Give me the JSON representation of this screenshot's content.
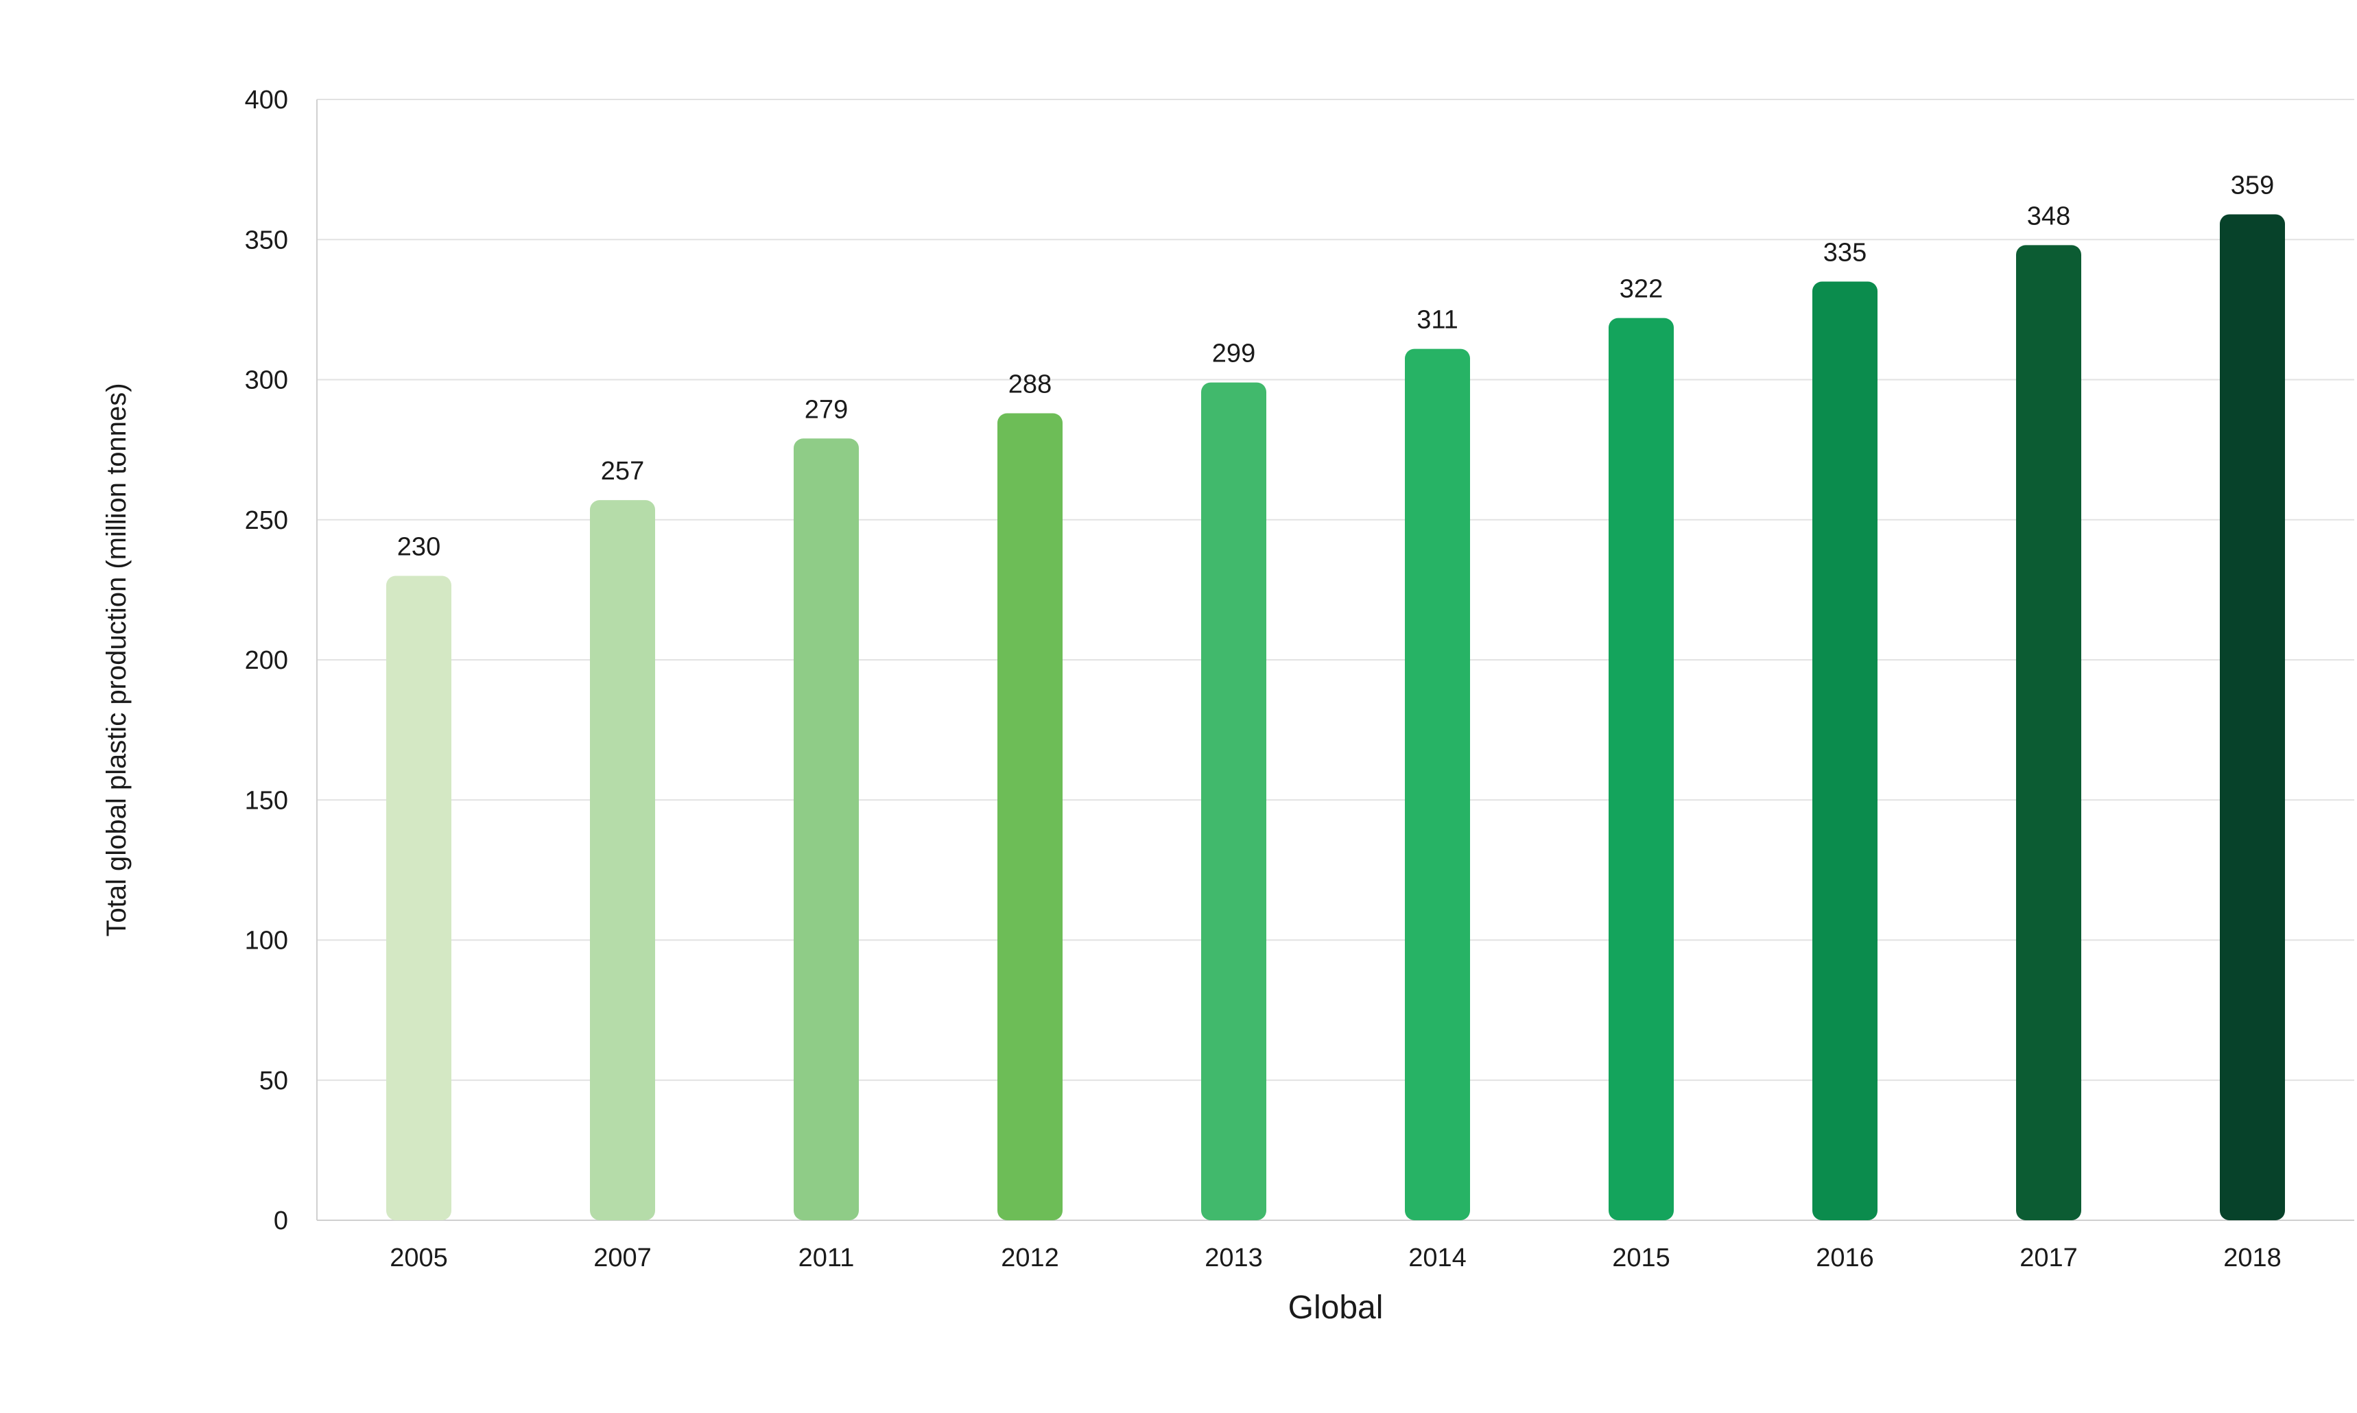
{
  "chart_data": {
    "type": "bar",
    "categories": [
      "2005",
      "2007",
      "2011",
      "2012",
      "2013",
      "2014",
      "2015",
      "2016",
      "2017",
      "2018"
    ],
    "values": [
      230,
      257,
      279,
      288,
      299,
      311,
      322,
      335,
      348,
      359
    ],
    "xlabel": "Global",
    "ylabel": "Total global plastic production (million tonnes)",
    "ylim": [
      0,
      400
    ],
    "yticks": [
      0,
      50,
      100,
      150,
      200,
      250,
      300,
      350,
      400
    ],
    "grid": true,
    "legend": "none",
    "data_labels": true,
    "bar_colors": [
      "#d4e8c4",
      "#b5dca9",
      "#8fcc87",
      "#6dbd57",
      "#41b96c",
      "#27b365",
      "#14a45c",
      "#0b8c4d",
      "#0c5c33",
      "#07422a"
    ]
  }
}
